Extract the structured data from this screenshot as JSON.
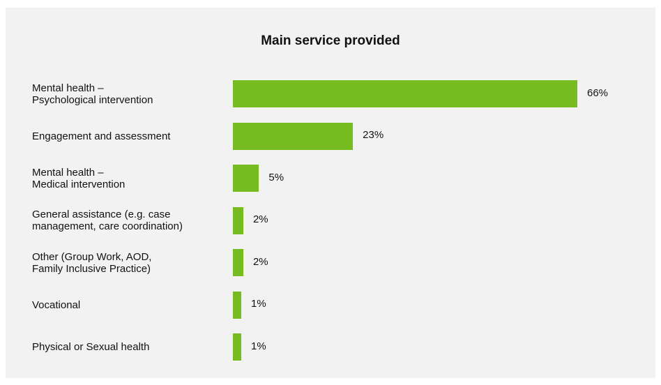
{
  "chart_data": {
    "type": "bar",
    "orientation": "horizontal",
    "title": "Main service provided",
    "categories": [
      [
        "Mental health –",
        "Psychological intervention"
      ],
      [
        "Engagement and assessment"
      ],
      [
        "Mental health –",
        "Medical intervention"
      ],
      [
        "General assistance (e.g. case",
        "management, care coordination)"
      ],
      [
        "Other (Group Work, AOD,",
        "Family Inclusive Practice)"
      ],
      [
        "Vocational"
      ],
      [
        "Physical or Sexual health"
      ]
    ],
    "values": [
      66,
      23,
      5,
      2,
      2,
      1,
      1
    ],
    "value_labels": [
      "66%",
      "23%",
      "5%",
      "2%",
      "2%",
      "1%",
      "1%"
    ],
    "xlim": [
      0,
      66
    ],
    "unit": "%",
    "grid": false,
    "legend": "none",
    "bar_color": "#76bc21"
  }
}
